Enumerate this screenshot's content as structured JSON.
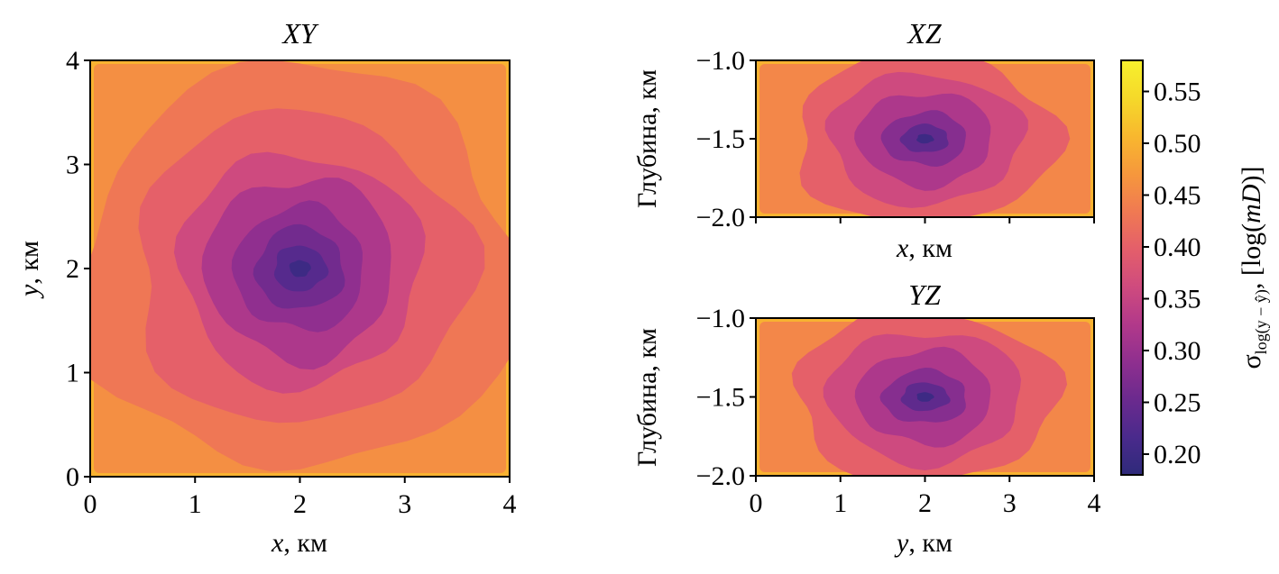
{
  "chart_data": [
    {
      "type": "heatmap",
      "panel": "XY",
      "title": "XY",
      "xlabel": "x, км",
      "ylabel": "y, км",
      "xlim": [
        0,
        4
      ],
      "ylim": [
        0,
        4
      ],
      "xticks": [
        "0",
        "1",
        "2",
        "3",
        "4"
      ],
      "yticks": [
        "0",
        "1",
        "2",
        "3",
        "4"
      ],
      "minimum_at": {
        "x": 2.0,
        "y": 2.0,
        "value": 0.2
      },
      "contour_levels": [
        {
          "value": 0.2,
          "rx": 0.1,
          "ry": 0.08
        },
        {
          "value": 0.23,
          "rx": 0.25,
          "ry": 0.22
        },
        {
          "value": 0.26,
          "rx": 0.42,
          "ry": 0.4
        },
        {
          "value": 0.29,
          "rx": 0.62,
          "ry": 0.6
        },
        {
          "value": 0.32,
          "rx": 0.9,
          "ry": 0.88
        },
        {
          "value": 0.36,
          "rx": 1.15,
          "ry": 1.12
        },
        {
          "value": 0.4,
          "rx": 1.6,
          "ry": 1.5
        },
        {
          "value": 0.43,
          "rx": 2.1,
          "ry": 1.95
        }
      ],
      "background_value": 0.46,
      "edge_value": 0.5
    },
    {
      "type": "heatmap",
      "panel": "XZ",
      "title": "XZ",
      "xlabel": "x, км",
      "ylabel": "Глубина, км",
      "xlim": [
        0,
        4
      ],
      "ylim": [
        -2.0,
        -1.0
      ],
      "xticks": [],
      "yticks": [
        "−2.0",
        "−1.5",
        "−1.0"
      ],
      "minimum_at": {
        "x": 2.0,
        "y": -1.5,
        "value": 0.2
      },
      "contour_levels": [
        {
          "value": 0.2,
          "rx": 0.1,
          "ry": 0.03
        },
        {
          "value": 0.24,
          "rx": 0.28,
          "ry": 0.09
        },
        {
          "value": 0.28,
          "rx": 0.5,
          "ry": 0.17
        },
        {
          "value": 0.32,
          "rx": 0.8,
          "ry": 0.3
        },
        {
          "value": 0.36,
          "rx": 1.15,
          "ry": 0.42
        },
        {
          "value": 0.4,
          "rx": 1.55,
          "ry": 0.55
        }
      ],
      "background_value": 0.45,
      "edge_value": 0.5
    },
    {
      "type": "heatmap",
      "panel": "YZ",
      "title": "YZ",
      "xlabel": "y, км",
      "ylabel": "Глубина, км",
      "xlim": [
        0,
        4
      ],
      "ylim": [
        -2.0,
        -1.0
      ],
      "xticks": [
        "0",
        "1",
        "2",
        "3",
        "4"
      ],
      "yticks": [
        "−2.0",
        "−1.5",
        "−1.0"
      ],
      "minimum_at": {
        "x": 2.0,
        "y": -1.5,
        "value": 0.2
      },
      "contour_levels": [
        {
          "value": 0.2,
          "rx": 0.1,
          "ry": 0.03
        },
        {
          "value": 0.24,
          "rx": 0.28,
          "ry": 0.09
        },
        {
          "value": 0.28,
          "rx": 0.5,
          "ry": 0.17
        },
        {
          "value": 0.32,
          "rx": 0.8,
          "ry": 0.3
        },
        {
          "value": 0.36,
          "rx": 1.15,
          "ry": 0.42
        },
        {
          "value": 0.4,
          "rx": 1.55,
          "ry": 0.55
        }
      ],
      "background_value": 0.45,
      "edge_value": 0.5
    }
  ],
  "colorbar": {
    "label_symbol": "σ",
    "label_subscript": "log(y − ŷ)",
    "label_units_prefix": ", [log(",
    "label_units_italic": "mD",
    "label_units_suffix": ")]",
    "range": [
      0.18,
      0.58
    ],
    "ticks": [
      "0.20",
      "0.25",
      "0.30",
      "0.35",
      "0.40",
      "0.45",
      "0.50",
      "0.55"
    ],
    "tick_values": [
      0.2,
      0.25,
      0.3,
      0.35,
      0.4,
      0.45,
      0.5,
      0.55
    ],
    "colormap": "plasma",
    "colors": [
      "#2e2a7a",
      "#4a2a8c",
      "#6b2a8e",
      "#8f2f8f",
      "#b2398a",
      "#cf4b7e",
      "#e45f6a",
      "#f07a52",
      "#f6983c",
      "#f8b82e",
      "#f5d92a",
      "#f7f02d"
    ]
  },
  "panels_text": {
    "xy_title": "XY",
    "xy_xvar": "x",
    "xy_xunit": ", км",
    "xy_yvar": "y",
    "xy_yunit": ", км",
    "xz_title": "XZ",
    "xz_xvar": "x",
    "xz_xunit": ", км",
    "xz_ylabel": "Глубина, км",
    "yz_title": "YZ",
    "yz_xvar": "y",
    "yz_xunit": ", км",
    "yz_ylabel": "Глубина, км"
  }
}
